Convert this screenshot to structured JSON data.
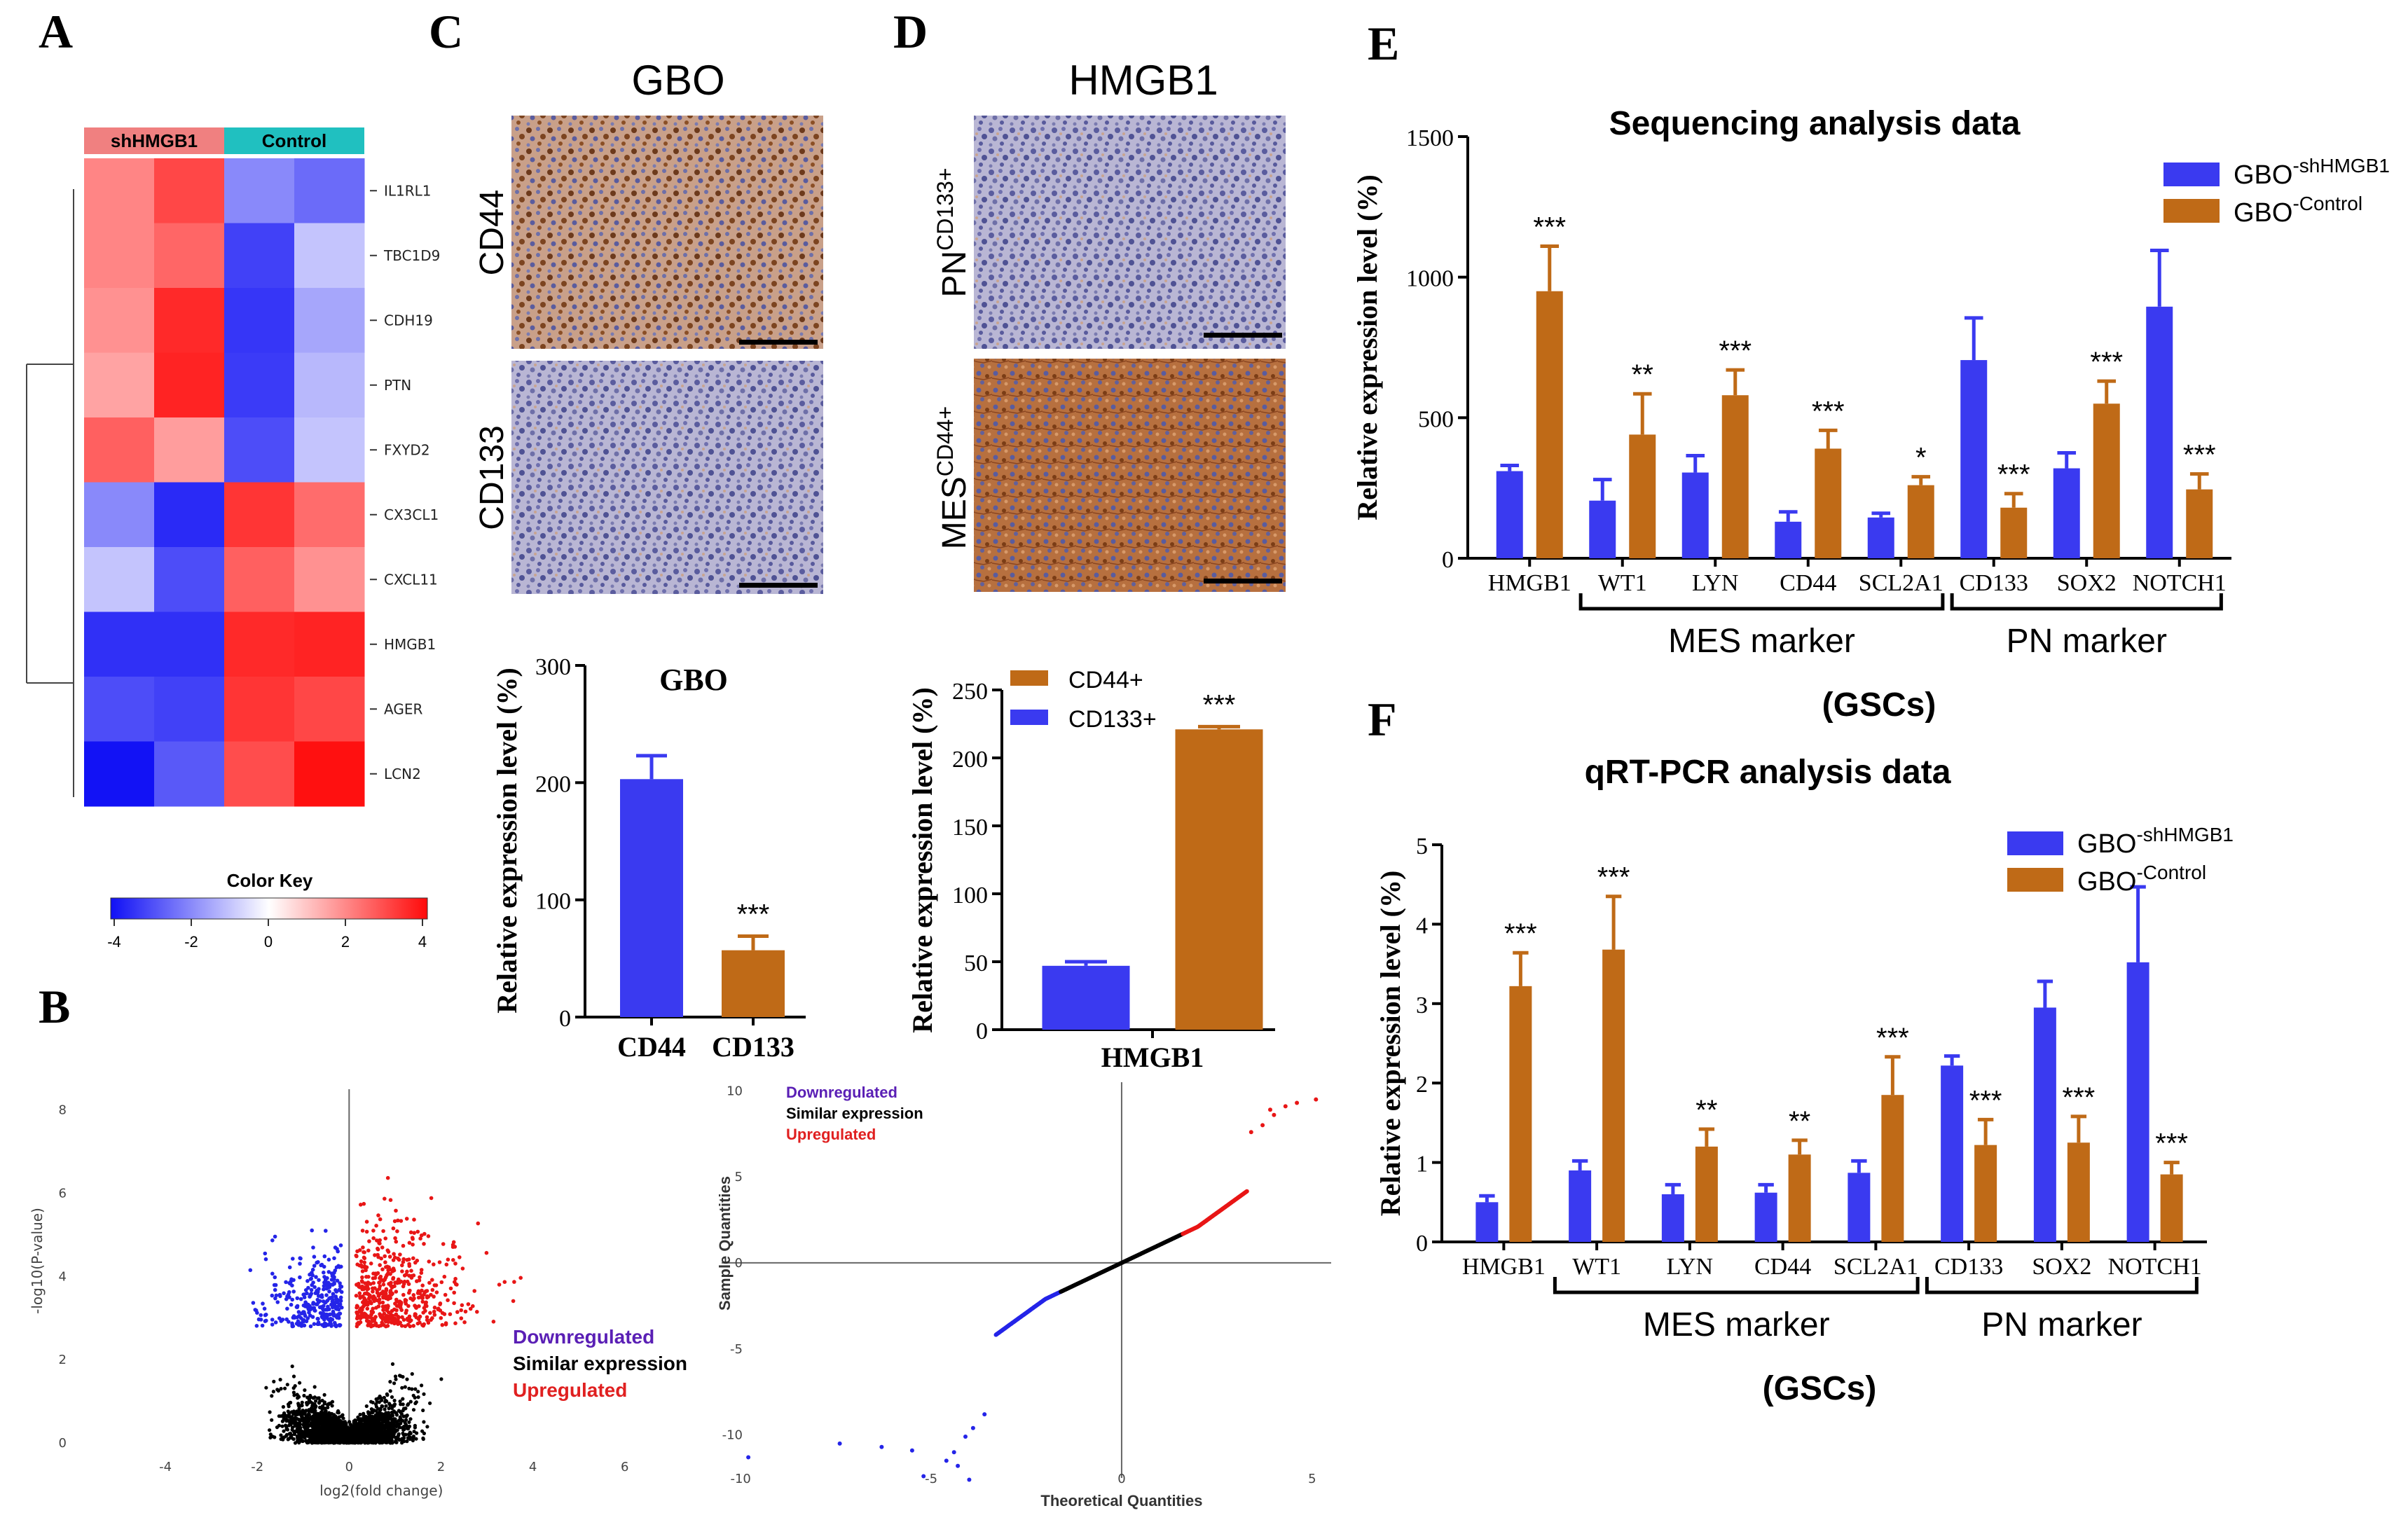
{
  "colors": {
    "blue": "#3a3af0",
    "orange": "#bf6a17",
    "heat_low": "#1818f5",
    "heat_mid": "#ffffff",
    "heat_high": "#ff1010",
    "legend_down": "#5a1fb5",
    "legend_up": "#e02020",
    "group_sh": "#f08080",
    "group_ctrl": "#20c0c0"
  },
  "panels": {
    "A": "A",
    "B": "B",
    "C": "C",
    "D": "D",
    "E": "E",
    "F": "F"
  },
  "chart_data": [
    {
      "id": "A",
      "type": "heatmap",
      "columns_groups": [
        "shHMGB1",
        "Control"
      ],
      "rows": [
        "IL1RL1",
        "TBC1D9",
        "CDH19",
        "PTN",
        "FXYD2",
        "CX3CL1",
        "CXCL11",
        "HMGB1",
        "AGER",
        "LCN2"
      ],
      "values": [
        [
          2.0,
          3.0,
          -2.0,
          -2.5
        ],
        [
          2.0,
          2.5,
          -3.2,
          -1.0
        ],
        [
          1.8,
          3.5,
          -3.4,
          -1.5
        ],
        [
          1.5,
          3.6,
          -3.3,
          -1.2
        ],
        [
          2.6,
          1.6,
          -3.0,
          -1.0
        ],
        [
          -2.0,
          -3.6,
          3.3,
          2.4
        ],
        [
          -1.0,
          -3.0,
          2.6,
          1.8
        ],
        [
          -3.5,
          -3.5,
          3.5,
          3.6
        ],
        [
          -3.0,
          -3.2,
          3.3,
          3.0
        ],
        [
          -4.0,
          -2.8,
          2.9,
          3.9
        ]
      ],
      "color_key_title": "Color Key",
      "color_key_ticks": [
        "-4",
        "-2",
        "0",
        "2",
        "4"
      ],
      "color_key_range": [
        -4,
        4
      ]
    },
    {
      "id": "B1",
      "type": "scatter",
      "xlabel": "log2(fold change)",
      "ylabel": "-log10(P-value)",
      "xlim": [
        -6,
        7.5
      ],
      "ylim": [
        0,
        8.5
      ],
      "xticks": [
        "-4",
        "-2",
        "0",
        "2",
        "4",
        "6"
      ],
      "yticks": [
        "0",
        "2",
        "4",
        "6",
        "8"
      ],
      "threshold_p": 2.8,
      "legend": [
        "Downregulated",
        "Similar expression",
        "Upregulated"
      ]
    },
    {
      "id": "B2",
      "type": "scatter",
      "xlabel": "Theoretical Quantities",
      "ylabel": "Sample Quantities",
      "xlim": [
        -10.5,
        5.5
      ],
      "ylim": [
        -12.5,
        10.5
      ],
      "xticks": [
        "-10",
        "-5",
        "0",
        "5"
      ],
      "yticks": [
        "-10",
        "-5",
        "0",
        "5",
        "10"
      ],
      "legend": [
        "Downregulated",
        "Similar expression",
        "Upregulated"
      ]
    },
    {
      "id": "C",
      "type": "bar",
      "title": "GBO",
      "categories": [
        "CD44",
        "CD133"
      ],
      "values": [
        203,
        57
      ],
      "errors": [
        20,
        12
      ],
      "significance": [
        "",
        "***"
      ],
      "ylabel": "Relative expression level (%)",
      "ylim": [
        0,
        300
      ],
      "yticks": [
        "0",
        "100",
        "200",
        "300"
      ]
    },
    {
      "id": "D",
      "type": "bar",
      "categories": [
        "HMGB1"
      ],
      "series": [
        {
          "name": "CD133+",
          "values": [
            47
          ],
          "errors": [
            3
          ]
        },
        {
          "name": "CD44+",
          "values": [
            221
          ],
          "errors": [
            2
          ]
        }
      ],
      "significance": "***",
      "ylabel": "Relative expression level (%)",
      "ylim": [
        0,
        250
      ],
      "yticks": [
        "0",
        "50",
        "100",
        "150",
        "200",
        "250"
      ]
    },
    {
      "id": "E",
      "type": "bar",
      "title": "Sequencing analysis data",
      "categories": [
        "HMGB1",
        "WT1",
        "LYN",
        "CD44",
        "SCL2A1",
        "CD133",
        "SOX2",
        "NOTCH1"
      ],
      "series": [
        {
          "name": "GBO-shHMGB1",
          "values": [
            310,
            205,
            305,
            130,
            145,
            705,
            320,
            895
          ],
          "errors": [
            20,
            75,
            60,
            35,
            15,
            150,
            55,
            200
          ]
        },
        {
          "name": "GBO-Control",
          "values": [
            950,
            440,
            580,
            390,
            260,
            180,
            550,
            245
          ],
          "errors": [
            160,
            145,
            90,
            65,
            30,
            50,
            80,
            55
          ]
        }
      ],
      "significance": [
        "***",
        "**",
        "***",
        "***",
        "*",
        "***",
        "***",
        "***"
      ],
      "ylabel": "Relative expression level (%)",
      "ylim": [
        0,
        1500
      ],
      "yticks": [
        "0",
        "500",
        "1000",
        "1500"
      ],
      "groups": [
        {
          "label": "MES marker",
          "from": 1,
          "to": 4
        },
        {
          "label": "PN marker",
          "from": 5,
          "to": 7
        }
      ],
      "xlabel": "(GSCs)"
    },
    {
      "id": "F",
      "type": "bar",
      "title": "qRT-PCR analysis data",
      "categories": [
        "HMGB1",
        "WT1",
        "LYN",
        "CD44",
        "SCL2A1",
        "CD133",
        "SOX2",
        "NOTCH1"
      ],
      "series": [
        {
          "name": "GBO-shHMGB1",
          "values": [
            0.5,
            0.9,
            0.6,
            0.62,
            0.87,
            2.22,
            2.95,
            3.52
          ],
          "errors": [
            0.08,
            0.12,
            0.12,
            0.1,
            0.15,
            0.12,
            0.33,
            0.95
          ]
        },
        {
          "name": "GBO-Control",
          "values": [
            3.22,
            3.68,
            1.2,
            1.1,
            1.85,
            1.22,
            1.25,
            0.85
          ],
          "errors": [
            0.42,
            0.67,
            0.22,
            0.18,
            0.48,
            0.32,
            0.33,
            0.15
          ]
        }
      ],
      "significance": [
        "***",
        "***",
        "**",
        "**",
        "***",
        "***",
        "***",
        "***"
      ],
      "ylabel": "Relative expression level (%)",
      "ylim": [
        0,
        5
      ],
      "yticks": [
        "0",
        "1",
        "2",
        "3",
        "4",
        "5"
      ],
      "groups": [
        {
          "label": "MES marker",
          "from": 1,
          "to": 4
        },
        {
          "label": "PN marker",
          "from": 5,
          "to": 7
        }
      ],
      "xlabel": "(GSCs)"
    }
  ],
  "ihc": {
    "C_title": "GBO",
    "C_rows": [
      "CD44",
      "CD133"
    ],
    "D_title": "HMGB1",
    "D_row1_base": "PN",
    "D_row1_sup": "CD133+",
    "D_row2_base": "MES",
    "D_row2_sup": "CD44+"
  },
  "legend_e": {
    "s1_base": "GBO",
    "s1_sup": "-shHMGB1",
    "s2_base": "GBO",
    "s2_sup": "-Control"
  },
  "legend_d": {
    "s1": "CD44+",
    "s2": "CD133+"
  }
}
